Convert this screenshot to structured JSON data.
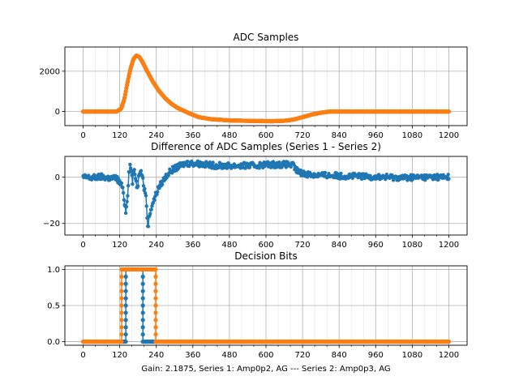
{
  "chart_data": [
    {
      "type": "scatter",
      "title": "ADC Samples",
      "xlim": [
        -60,
        1260
      ],
      "ylim": [
        -700,
        3200
      ],
      "xticks": [
        0,
        120,
        240,
        360,
        480,
        600,
        720,
        840,
        960,
        1080,
        1200
      ],
      "xtick_labels": [
        "0",
        "120",
        "240",
        "360",
        "480",
        "600",
        "720",
        "840",
        "960",
        "1080",
        "1200"
      ],
      "yticks": [
        0,
        2000
      ],
      "ytick_labels": [
        "0",
        "2000"
      ],
      "grid": true,
      "series": [
        {
          "name": "Series 1",
          "color": "#1f77b4",
          "style": "line-markers",
          "x": [
            0,
            110,
            125,
            135,
            145,
            155,
            165,
            175,
            185,
            195,
            210,
            230,
            250,
            270,
            290,
            310,
            330,
            350,
            380,
            420,
            480,
            560,
            620,
            660,
            690,
            720,
            750,
            780,
            810,
            840,
            1200
          ],
          "y": [
            0,
            0,
            150,
            600,
            1400,
            2100,
            2600,
            2780,
            2700,
            2450,
            2000,
            1450,
            1000,
            650,
            380,
            180,
            40,
            -100,
            -280,
            -380,
            -440,
            -470,
            -480,
            -460,
            -400,
            -280,
            -150,
            -60,
            0,
            0,
            0
          ]
        },
        {
          "name": "Series 2",
          "color": "#ff7f0e",
          "style": "line-markers",
          "x": [
            0,
            110,
            125,
            135,
            145,
            155,
            165,
            175,
            185,
            195,
            210,
            230,
            250,
            270,
            290,
            310,
            330,
            350,
            380,
            420,
            480,
            560,
            620,
            660,
            690,
            720,
            750,
            780,
            810,
            840,
            1200
          ],
          "y": [
            0,
            0,
            150,
            600,
            1400,
            2100,
            2600,
            2780,
            2700,
            2450,
            2000,
            1450,
            1000,
            650,
            380,
            180,
            40,
            -100,
            -280,
            -380,
            -440,
            -470,
            -480,
            -460,
            -400,
            -280,
            -150,
            -60,
            0,
            0,
            0
          ]
        }
      ]
    },
    {
      "type": "scatter",
      "title": "Difference of ADC Samples (Series 1 - Series 2)",
      "xlim": [
        -60,
        1260
      ],
      "ylim": [
        -25,
        9
      ],
      "xticks": [
        0,
        120,
        240,
        360,
        480,
        600,
        720,
        840,
        960,
        1080,
        1200
      ],
      "xtick_labels": [
        "0",
        "120",
        "240",
        "360",
        "480",
        "600",
        "720",
        "840",
        "960",
        "1080",
        "1200"
      ],
      "yticks": [
        0,
        -20
      ],
      "ytick_labels": [
        "0",
        "−20"
      ],
      "grid": true,
      "series": [
        {
          "name": "Difference",
          "color": "#1f77b4",
          "style": "line-markers",
          "x": [
            0,
            30,
            60,
            90,
            110,
            120,
            128,
            134,
            140,
            146,
            150,
            154,
            158,
            162,
            166,
            172,
            178,
            184,
            190,
            196,
            200,
            204,
            208,
            212,
            216,
            220,
            226,
            232,
            240,
            250,
            260,
            275,
            290,
            305,
            320,
            335,
            350,
            370,
            400,
            440,
            480,
            520,
            560,
            600,
            640,
            670,
            690,
            700,
            710,
            730,
            760,
            800,
            850,
            900,
            950,
            1000,
            1050,
            1100,
            1150,
            1200
          ],
          "y": [
            0,
            -0.3,
            0.2,
            -0.5,
            -0.3,
            -2.5,
            -4,
            -9,
            -15,
            -7,
            2,
            5,
            3,
            -2,
            3,
            0,
            -5,
            2,
            4,
            -1,
            -5,
            -6,
            -12,
            -22,
            -18,
            -15,
            -12,
            -10,
            -7,
            -4,
            -2,
            1,
            3,
            4,
            5,
            6,
            6,
            6,
            5.5,
            5,
            5,
            5,
            5,
            5.5,
            5.5,
            5.5,
            5,
            3,
            2,
            1.5,
            1,
            0.8,
            0.6,
            0.4,
            0.2,
            0,
            -0.2,
            0,
            0.1,
            0
          ]
        }
      ]
    },
    {
      "type": "scatter",
      "title": "Decision Bits",
      "xlim": [
        -60,
        1260
      ],
      "ylim": [
        -0.05,
        1.05
      ],
      "xticks": [
        0,
        120,
        240,
        360,
        480,
        600,
        720,
        840,
        960,
        1080,
        1200
      ],
      "xtick_labels": [
        "0",
        "120",
        "240",
        "360",
        "480",
        "600",
        "720",
        "840",
        "960",
        "1080",
        "1200"
      ],
      "xlabel": "Gain: 2.1875, Series 1: Amp0p2, AG --- Series 2: Amp0p3, AG",
      "yticks": [
        0,
        0.5,
        1
      ],
      "ytick_labels": [
        "0.0",
        "0.5",
        "1.0"
      ],
      "grid": true,
      "series": [
        {
          "name": "Series 1",
          "color": "#1f77b4",
          "style": "step-markers",
          "x": [
            0,
            140,
            140,
            196,
            196,
            1200
          ],
          "y": [
            0,
            0,
            1,
            1,
            0,
            0
          ]
        },
        {
          "name": "Series 2",
          "color": "#ff7f0e",
          "style": "step-markers",
          "x": [
            0,
            126,
            126,
            238,
            238,
            1200
          ],
          "y": [
            0,
            0,
            1,
            1,
            0,
            0
          ]
        }
      ]
    }
  ]
}
